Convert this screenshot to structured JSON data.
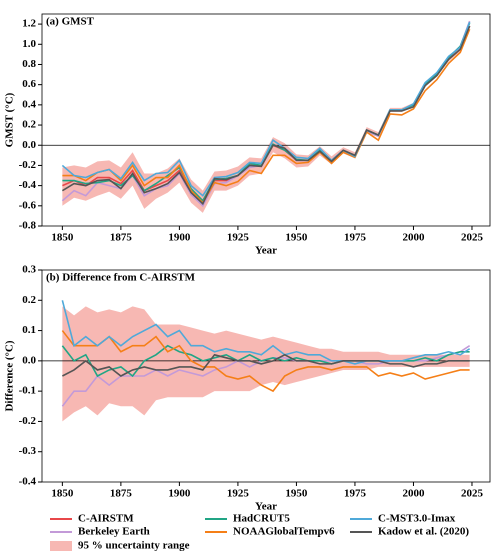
{
  "chart_data": [
    {
      "type": "line",
      "title": "(a) GMST",
      "xlabel": "Year",
      "ylabel": "GMST (°C)",
      "x": [
        1850,
        1855,
        1860,
        1865,
        1870,
        1875,
        1880,
        1885,
        1890,
        1895,
        1900,
        1905,
        1910,
        1915,
        1920,
        1925,
        1930,
        1935,
        1940,
        1945,
        1950,
        1955,
        1960,
        1965,
        1970,
        1975,
        1980,
        1985,
        1990,
        1995,
        2000,
        2005,
        2010,
        2015,
        2020,
        2024
      ],
      "xlim": [
        1841.3,
        2032.7
      ],
      "xticks": [
        1850,
        1875,
        1900,
        1925,
        1950,
        1975,
        2000,
        2025
      ],
      "ylim": [
        -0.8,
        1.3
      ],
      "yticks": [
        -0.8,
        -0.6,
        -0.4,
        -0.2,
        {
          "value": 0,
          "label": "0.0"
        },
        0.2,
        0.4,
        0.6,
        0.8,
        {
          "value": 1,
          "label": "1.0"
        },
        1.2
      ],
      "zero_line": true,
      "band": {
        "name": "95 % uncertainty range",
        "color": "#f4a09a",
        "lower": [
          -0.6,
          -0.52,
          -0.55,
          -0.5,
          -0.46,
          -0.53,
          -0.4,
          -0.63,
          -0.53,
          -0.47,
          -0.37,
          -0.57,
          -0.67,
          -0.45,
          -0.45,
          -0.4,
          -0.3,
          -0.28,
          -0.07,
          -0.13,
          -0.22,
          -0.21,
          -0.1,
          -0.19,
          -0.08,
          -0.13,
          0.12,
          0.08,
          0.33,
          0.33,
          0.38,
          0.58,
          0.68,
          0.83,
          0.93,
          1.16
        ],
        "upper": [
          -0.22,
          -0.2,
          -0.22,
          -0.16,
          -0.15,
          -0.22,
          -0.07,
          -0.28,
          -0.28,
          -0.23,
          -0.13,
          -0.34,
          -0.45,
          -0.26,
          -0.25,
          -0.21,
          -0.12,
          -0.13,
          0.08,
          0.02,
          -0.09,
          -0.1,
          -0.01,
          -0.11,
          -0.02,
          -0.07,
          0.18,
          0.13,
          0.37,
          0.37,
          0.42,
          0.62,
          0.72,
          0.87,
          0.97,
          1.2
        ]
      },
      "series": [
        {
          "name": "C-AIRSTM",
          "color": "#e8474a",
          "values": [
            -0.4,
            -0.35,
            -0.4,
            -0.32,
            -0.32,
            -0.38,
            -0.25,
            -0.45,
            -0.4,
            -0.35,
            -0.25,
            -0.45,
            -0.55,
            -0.35,
            -0.35,
            -0.3,
            -0.2,
            -0.2,
            0.0,
            -0.05,
            -0.15,
            -0.15,
            -0.05,
            -0.15,
            -0.05,
            -0.1,
            0.15,
            0.1,
            0.35,
            0.35,
            0.4,
            0.6,
            0.7,
            0.85,
            0.95,
            1.18
          ]
        },
        {
          "name": "Berkeley Earth",
          "color": "#c39ad8",
          "values": [
            -0.55,
            -0.45,
            -0.5,
            -0.37,
            -0.4,
            -0.43,
            -0.3,
            -0.5,
            -0.43,
            -0.4,
            -0.28,
            -0.49,
            -0.6,
            -0.38,
            -0.37,
            -0.3,
            -0.22,
            -0.2,
            0.01,
            -0.04,
            -0.15,
            -0.15,
            -0.05,
            -0.15,
            -0.05,
            -0.1,
            0.14,
            0.09,
            0.35,
            0.35,
            0.4,
            0.6,
            0.71,
            0.87,
            0.98,
            1.23
          ]
        },
        {
          "name": "HadCRUT5",
          "color": "#21a585",
          "values": [
            -0.35,
            -0.35,
            -0.38,
            -0.37,
            -0.35,
            -0.4,
            -0.3,
            -0.45,
            -0.38,
            -0.3,
            -0.22,
            -0.43,
            -0.55,
            -0.34,
            -0.33,
            -0.3,
            -0.18,
            -0.2,
            0.01,
            -0.05,
            -0.14,
            -0.15,
            -0.05,
            -0.16,
            -0.05,
            -0.1,
            0.15,
            0.1,
            0.35,
            0.35,
            0.4,
            0.61,
            0.7,
            0.87,
            0.98,
            1.21
          ]
        },
        {
          "name": "NOAAGlobalTempv6",
          "color": "#f57f17",
          "values": [
            -0.3,
            -0.3,
            -0.35,
            -0.27,
            -0.24,
            -0.35,
            -0.2,
            -0.4,
            -0.32,
            -0.32,
            -0.2,
            -0.45,
            -0.57,
            -0.37,
            -0.4,
            -0.36,
            -0.25,
            -0.28,
            -0.1,
            -0.1,
            -0.18,
            -0.17,
            -0.07,
            -0.18,
            -0.07,
            -0.12,
            0.13,
            0.05,
            0.31,
            0.3,
            0.36,
            0.54,
            0.65,
            0.81,
            0.92,
            1.15
          ]
        },
        {
          "name": "C-MST3.0-Imax",
          "color": "#4fa9d9",
          "values": [
            -0.2,
            -0.3,
            -0.32,
            -0.27,
            -0.24,
            -0.33,
            -0.17,
            -0.35,
            -0.28,
            -0.27,
            -0.15,
            -0.4,
            -0.5,
            -0.32,
            -0.31,
            -0.27,
            -0.17,
            -0.18,
            0.05,
            -0.03,
            -0.12,
            -0.13,
            -0.03,
            -0.15,
            -0.05,
            -0.11,
            0.15,
            0.1,
            0.35,
            0.35,
            0.41,
            0.62,
            0.72,
            0.88,
            0.97,
            1.22
          ]
        },
        {
          "name": "Kadow et al. (2020)",
          "color": "#555555",
          "values": [
            -0.45,
            -0.38,
            -0.4,
            -0.35,
            -0.34,
            -0.43,
            -0.28,
            -0.47,
            -0.43,
            -0.38,
            -0.27,
            -0.47,
            -0.58,
            -0.33,
            -0.34,
            -0.3,
            -0.2,
            -0.21,
            0.0,
            -0.03,
            -0.15,
            -0.15,
            -0.06,
            -0.16,
            -0.05,
            -0.1,
            0.15,
            0.1,
            0.34,
            0.34,
            0.38,
            0.59,
            0.69,
            0.85,
            0.95,
            1.18
          ]
        }
      ]
    },
    {
      "type": "line",
      "title": "(b) Difference from C-AIRSTM",
      "xlabel": "Year",
      "ylabel": "Difference (°C)",
      "x": [
        1850,
        1855,
        1860,
        1865,
        1870,
        1875,
        1880,
        1885,
        1890,
        1895,
        1900,
        1905,
        1910,
        1915,
        1920,
        1925,
        1930,
        1935,
        1940,
        1945,
        1950,
        1955,
        1960,
        1965,
        1970,
        1975,
        1980,
        1985,
        1990,
        1995,
        2000,
        2005,
        2010,
        2015,
        2020,
        2024
      ],
      "xlim": [
        1841.3,
        2032.7
      ],
      "xticks": [
        1850,
        1875,
        1900,
        1925,
        1950,
        1975,
        2000,
        2025
      ],
      "ylim": [
        -0.4,
        0.3
      ],
      "yticks": [
        -0.4,
        -0.3,
        -0.2,
        -0.1,
        {
          "value": 0,
          "label": "0.0"
        },
        0.1,
        0.2,
        0.3
      ],
      "zero_line": true,
      "band": {
        "color": "#f4a09a",
        "lower": [
          -0.2,
          -0.17,
          -0.15,
          -0.18,
          -0.14,
          -0.15,
          -0.15,
          -0.18,
          -0.13,
          -0.12,
          -0.12,
          -0.12,
          -0.12,
          -0.1,
          -0.1,
          -0.1,
          -0.1,
          -0.08,
          -0.07,
          -0.08,
          -0.07,
          -0.06,
          -0.05,
          -0.04,
          -0.03,
          -0.03,
          -0.03,
          -0.02,
          -0.02,
          -0.02,
          -0.02,
          -0.02,
          -0.02,
          -0.02,
          -0.02,
          -0.02
        ],
        "upper": [
          0.18,
          0.15,
          0.18,
          0.16,
          0.17,
          0.16,
          0.18,
          0.17,
          0.12,
          0.12,
          0.12,
          0.11,
          0.1,
          0.09,
          0.1,
          0.09,
          0.08,
          0.07,
          0.08,
          0.07,
          0.06,
          0.05,
          0.04,
          0.04,
          0.03,
          0.03,
          0.03,
          0.03,
          0.02,
          0.02,
          0.02,
          0.02,
          0.02,
          0.02,
          0.02,
          0.02
        ]
      },
      "series": [
        {
          "name": "Berkeley Earth",
          "color": "#c39ad8",
          "values": [
            -0.15,
            -0.1,
            -0.1,
            -0.05,
            -0.08,
            -0.05,
            -0.05,
            -0.05,
            -0.03,
            -0.05,
            -0.03,
            -0.04,
            -0.05,
            -0.03,
            -0.02,
            0.0,
            -0.02,
            0.0,
            0.01,
            0.01,
            0.0,
            0.0,
            0.0,
            0.0,
            0.0,
            0.0,
            -0.01,
            -0.01,
            0.0,
            0.0,
            0.0,
            0.0,
            0.01,
            0.02,
            0.03,
            0.05
          ]
        },
        {
          "name": "HadCRUT5",
          "color": "#21a585",
          "values": [
            0.05,
            0.0,
            0.02,
            -0.05,
            -0.03,
            -0.02,
            -0.05,
            0.0,
            0.02,
            0.05,
            0.03,
            0.02,
            0.0,
            0.01,
            0.02,
            0.0,
            0.02,
            0.0,
            0.01,
            0.0,
            0.01,
            0.0,
            0.0,
            -0.01,
            0.0,
            0.0,
            0.0,
            0.0,
            0.0,
            0.0,
            0.0,
            0.01,
            0.0,
            0.02,
            0.03,
            0.03
          ]
        },
        {
          "name": "NOAAGlobalTempv6",
          "color": "#f57f17",
          "values": [
            0.1,
            0.05,
            0.05,
            0.05,
            0.08,
            0.03,
            0.05,
            0.05,
            0.08,
            0.03,
            0.05,
            0.0,
            -0.02,
            -0.02,
            -0.05,
            -0.06,
            -0.05,
            -0.08,
            -0.1,
            -0.05,
            -0.03,
            -0.02,
            -0.02,
            -0.03,
            -0.02,
            -0.02,
            -0.02,
            -0.05,
            -0.04,
            -0.05,
            -0.04,
            -0.06,
            -0.05,
            -0.04,
            -0.03,
            -0.03
          ]
        },
        {
          "name": "C-MST3.0-Imax",
          "color": "#4fa9d9",
          "values": [
            0.2,
            0.05,
            0.08,
            0.05,
            0.08,
            0.05,
            0.08,
            0.1,
            0.12,
            0.08,
            0.1,
            0.05,
            0.05,
            0.03,
            0.04,
            0.03,
            0.03,
            0.02,
            0.05,
            0.02,
            0.03,
            0.02,
            0.02,
            0.0,
            0.0,
            -0.01,
            0.0,
            0.0,
            0.0,
            0.0,
            0.01,
            0.02,
            0.02,
            0.03,
            0.02,
            0.04
          ]
        },
        {
          "name": "Kadow et al. (2020)",
          "color": "#555555",
          "values": [
            -0.05,
            -0.03,
            0.0,
            -0.03,
            -0.02,
            -0.05,
            -0.03,
            -0.02,
            -0.03,
            -0.03,
            -0.02,
            -0.02,
            -0.03,
            0.02,
            0.01,
            0.0,
            0.0,
            -0.01,
            0.0,
            0.02,
            0.0,
            0.0,
            -0.01,
            -0.01,
            0.0,
            0.0,
            0.0,
            0.0,
            -0.01,
            -0.01,
            -0.02,
            -0.01,
            -0.01,
            0.0,
            0.0,
            0.0
          ]
        }
      ]
    }
  ]
}
